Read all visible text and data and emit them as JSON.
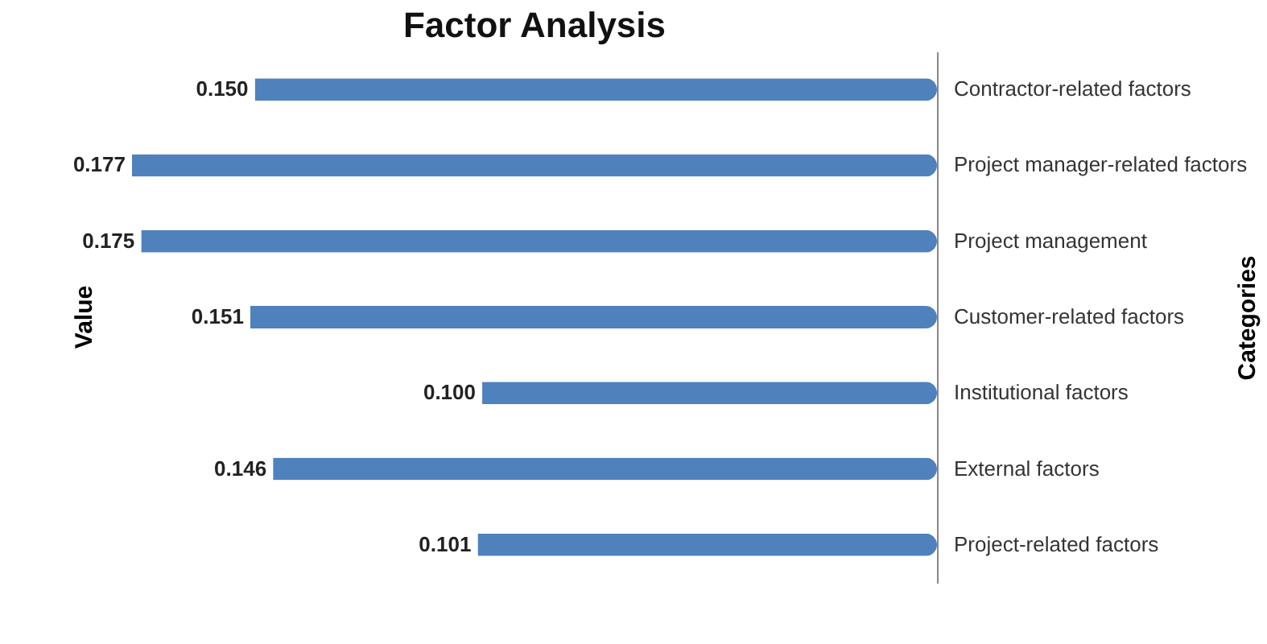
{
  "chart_data": {
    "type": "bar",
    "orientation": "horizontal",
    "title": "Factor Analysis",
    "ylabel": "Value",
    "y2label": "Categories",
    "categories": [
      "Contractor-related factors",
      "Project manager-related factors",
      "Project management",
      "Customer-related factors",
      "Institutional factors",
      "External factors",
      "Project-related factors"
    ],
    "values": [
      0.15,
      0.177,
      0.175,
      0.151,
      0.1,
      0.146,
      0.101
    ],
    "value_labels": [
      "0.150",
      "0.177",
      "0.175",
      "0.151",
      "0.100",
      "0.146",
      "0.101"
    ],
    "color": "#4f81bd"
  }
}
